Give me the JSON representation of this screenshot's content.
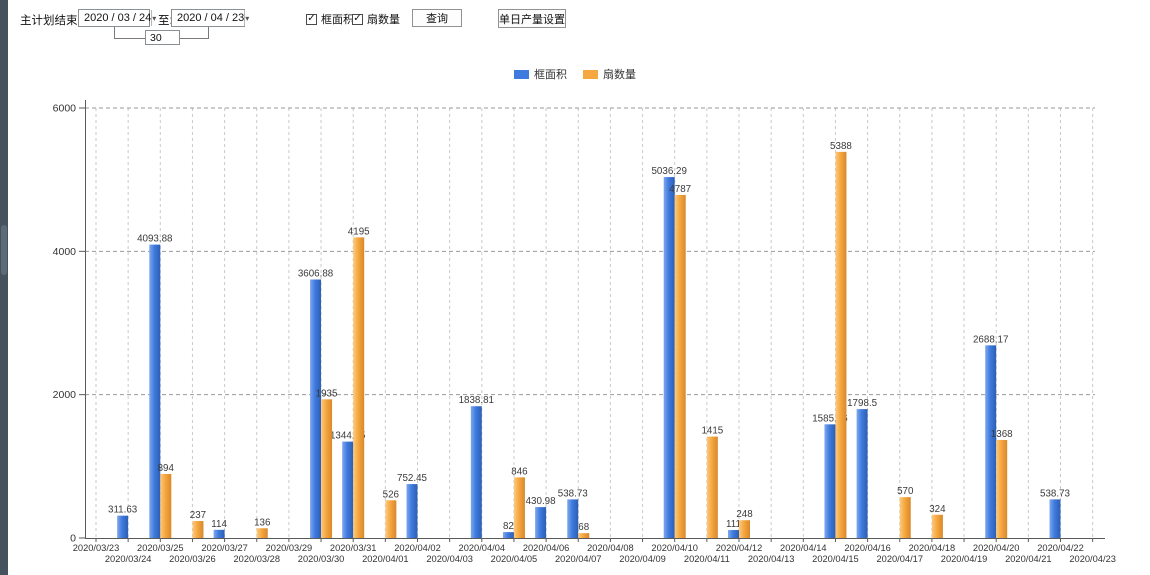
{
  "toolbar": {
    "end_time_label": "主计划结束时间:",
    "date_from": "2020 / 03 / 24",
    "to_label": "至:",
    "date_to": "2020 / 04 / 23",
    "span_days": "30",
    "checkbox_frame_area": "框面积",
    "checkbox_fan_count": "扇数量",
    "query_button": "查询",
    "daily_output_button": "单日产量设置"
  },
  "icons": {
    "dropdown": "▾",
    "check": "✓"
  },
  "colors": {
    "series_blue": "#3f7ade",
    "series_blue_light": "#7fa8ee",
    "series_blue_dark": "#2c5fb3",
    "series_orange": "#f6a73f",
    "series_orange_light": "#fcca80",
    "series_orange_dark": "#d8882b",
    "axis": "#5a5a5a",
    "grid_vertical": "#c9c9c9",
    "grid_horizontal": "#9a9a9a",
    "value_label": "#3a3a3a",
    "tick_label": "#333333",
    "side_strip": "#46525e"
  },
  "chart_data": {
    "type": "bar",
    "title": "",
    "xlabel": "",
    "ylabel": "",
    "ylim": [
      0,
      6000
    ],
    "yticks": [
      0,
      2000,
      4000,
      6000
    ],
    "grid": true,
    "legend_position": "top",
    "categories": [
      "2020/03/23",
      "2020/03/24",
      "2020/03/25",
      "2020/03/26",
      "2020/03/27",
      "2020/03/28",
      "2020/03/29",
      "2020/03/30",
      "2020/03/31",
      "2020/04/01",
      "2020/04/02",
      "2020/04/03",
      "2020/04/04",
      "2020/04/05",
      "2020/04/06",
      "2020/04/07",
      "2020/04/08",
      "2020/04/09",
      "2020/04/10",
      "2020/04/11",
      "2020/04/12",
      "2020/04/13",
      "2020/04/14",
      "2020/04/15",
      "2020/04/16",
      "2020/04/17",
      "2020/04/18",
      "2020/04/19",
      "2020/04/20",
      "2020/04/21",
      "2020/04/22",
      "2020/04/23"
    ],
    "series": [
      {
        "name": "框面积",
        "color": "#3f7ade",
        "color_light": "#7fa8ee",
        "color_dark": "#2c5fb3",
        "values": [
          null,
          311.63,
          4093.88,
          null,
          114,
          null,
          null,
          3606.88,
          1344.95,
          null,
          752.45,
          null,
          1838.81,
          82,
          430.98,
          538.73,
          null,
          null,
          5036.29,
          null,
          111,
          null,
          null,
          1585.96,
          1798.5,
          null,
          null,
          null,
          2688.17,
          null,
          538.73,
          null
        ]
      },
      {
        "name": "扇数量",
        "color": "#f6a73f",
        "color_light": "#fcca80",
        "color_dark": "#d8882b",
        "values": [
          null,
          null,
          894,
          237,
          null,
          136,
          null,
          1935,
          4195,
          526,
          null,
          null,
          null,
          846,
          null,
          68,
          null,
          null,
          4787,
          1415,
          248,
          null,
          null,
          5388,
          null,
          570,
          324,
          null,
          1368,
          null,
          null,
          null
        ]
      }
    ]
  }
}
